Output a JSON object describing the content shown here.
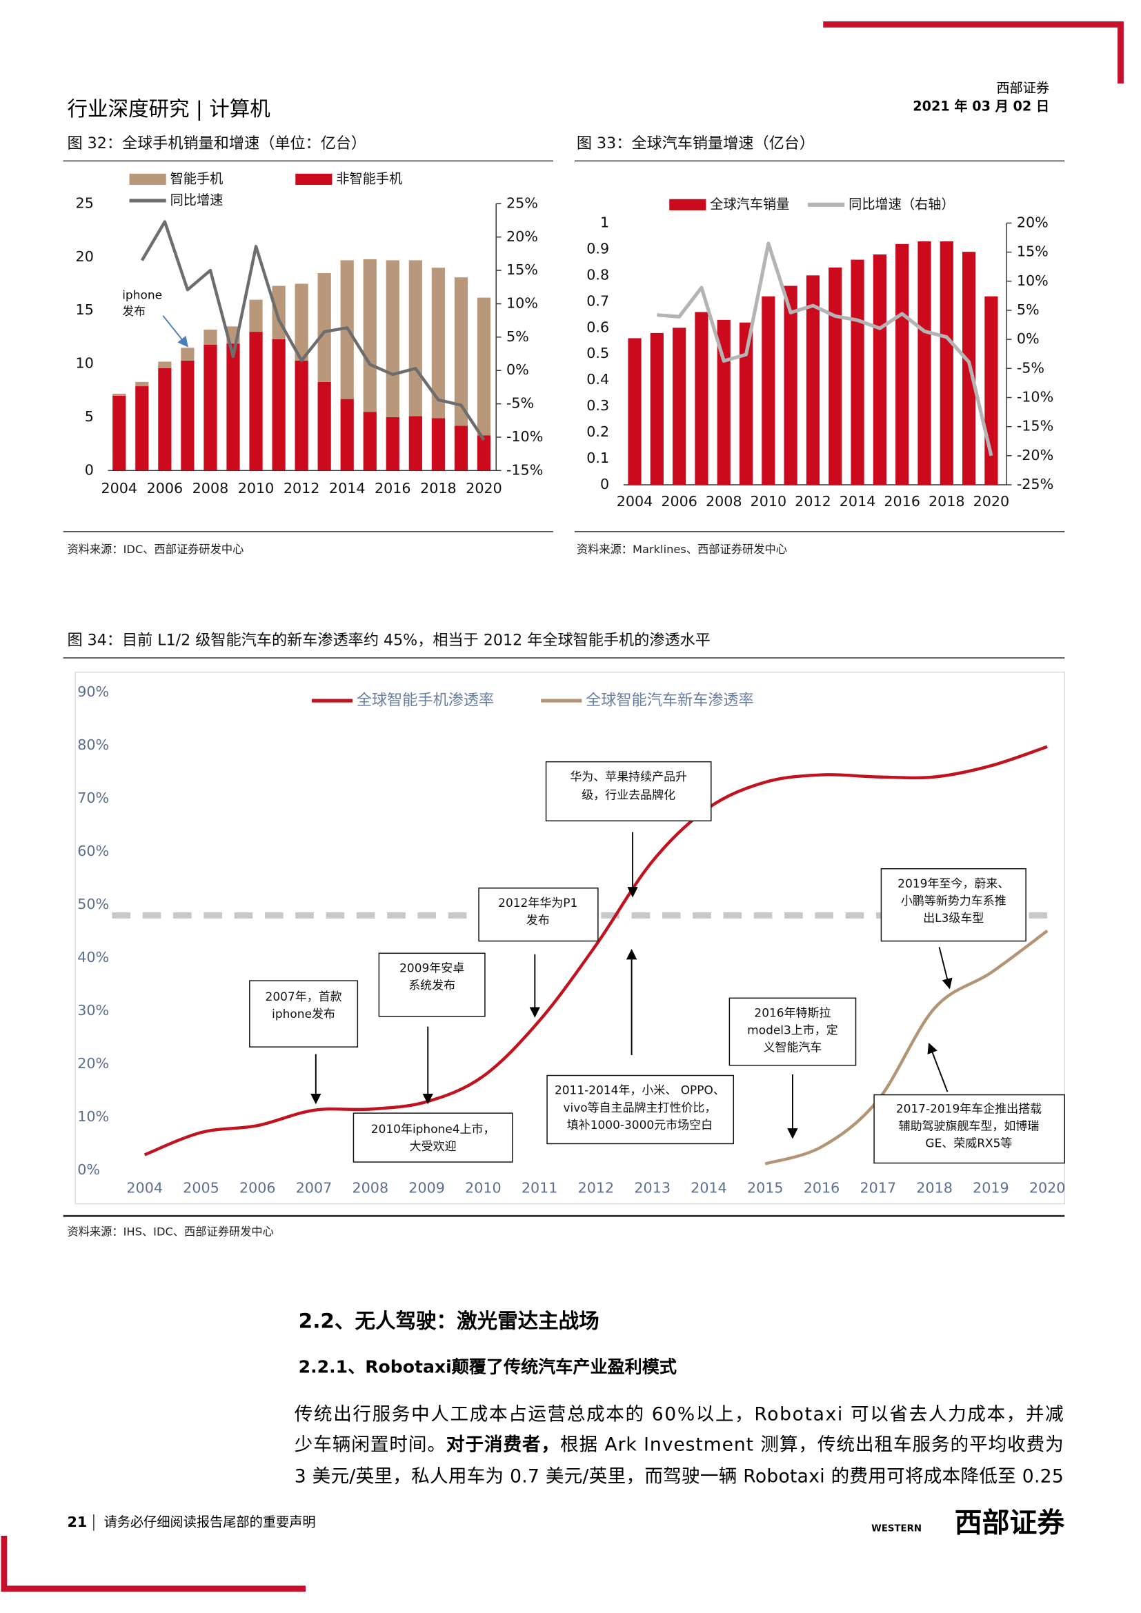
{
  "header": {
    "company": "西部证券",
    "date": "2021 年 03 月 02 日",
    "category": "行业深度研究 | 计算机"
  },
  "chart_data": [
    {
      "type": "bar",
      "stacked": true,
      "figure": "图 32：全球手机销量和增速（单位：亿台）",
      "source": "资料来源：IDC、西部证券研发中心",
      "categories": [
        "2004",
        null,
        "2006",
        null,
        "2008",
        null,
        "2010",
        null,
        "2012",
        null,
        "2014",
        null,
        "2016",
        null,
        "2018",
        null,
        "2020"
      ],
      "series": [
        {
          "name": "智能手机",
          "color": "#b8977a",
          "values": [
            0.2,
            0.4,
            0.6,
            1.2,
            1.4,
            1.6,
            3.0,
            5.0,
            7.2,
            10.2,
            13.0,
            14.3,
            14.7,
            14.6,
            14.1,
            13.9,
            12.9
          ]
        },
        {
          "name": "非智能手机",
          "color": "#cc0a1e",
          "values": [
            7.0,
            7.9,
            9.6,
            10.3,
            11.8,
            11.9,
            13.0,
            12.3,
            10.3,
            8.3,
            6.7,
            5.5,
            5.0,
            5.1,
            4.9,
            4.2,
            3.3
          ]
        },
        {
          "name": "同比增速",
          "type": "line",
          "axis": "y2",
          "color": "#6d6d6d",
          "values": [
            null,
            16.5,
            22.3,
            12.1,
            15.0,
            2.1,
            18.6,
            7.6,
            1.5,
            5.8,
            6.4,
            0.9,
            -0.6,
            0.3,
            -4.4,
            -5.2,
            -10.4
          ]
        }
      ],
      "ylim": [
        0,
        25
      ],
      "yticks": [
        0,
        5,
        10,
        15,
        20,
        25
      ],
      "y2lim": [
        -15,
        25
      ],
      "y2ticks": [
        {
          "value": -15,
          "label": "-15%"
        },
        {
          "value": -10,
          "label": "-10%"
        },
        {
          "value": -5,
          "label": "-5%"
        },
        {
          "value": 0,
          "label": "0%"
        },
        {
          "value": 5,
          "label": "5%"
        },
        {
          "value": 10,
          "label": "10%"
        },
        {
          "value": 15,
          "label": "15%"
        },
        {
          "value": 20,
          "label": "20%"
        },
        {
          "value": 25,
          "label": "25%"
        }
      ],
      "annotations": [
        {
          "text": [
            "iphone",
            "发布"
          ]
        }
      ]
    },
    {
      "type": "bar",
      "figure": "图 33：全球汽车销量增速（亿台）",
      "source": "资料来源：Marklines、西部证券研发中心",
      "categories": [
        "2004",
        null,
        "2006",
        null,
        "2008",
        null,
        "2010",
        null,
        "2012",
        null,
        "2014",
        null,
        "2016",
        null,
        "2018",
        null,
        "2020"
      ],
      "series": [
        {
          "name": "全球汽车销量",
          "color": "#cc0a1e",
          "values": [
            0.56,
            0.58,
            0.6,
            0.66,
            0.63,
            0.62,
            0.72,
            0.76,
            0.8,
            0.83,
            0.86,
            0.88,
            0.92,
            0.93,
            0.93,
            0.89,
            0.72
          ]
        },
        {
          "name": "同比增速（右轴）",
          "type": "line",
          "axis": "y2",
          "color": "#b4b4b4",
          "values": [
            null,
            4.2,
            3.9,
            8.9,
            -3.7,
            -2.6,
            16.5,
            4.6,
            5.8,
            4.0,
            3.3,
            1.9,
            4.4,
            1.4,
            0.4,
            -3.9,
            -20.0
          ]
        }
      ],
      "ylim": [
        0,
        1
      ],
      "yticks": [
        0,
        0.1,
        0.2,
        0.3,
        0.4,
        0.5,
        0.6,
        0.7,
        0.8,
        0.9,
        1
      ],
      "y2lim": [
        -25,
        20
      ],
      "y2ticks": [
        {
          "value": -25,
          "label": "-25%"
        },
        {
          "value": -20,
          "label": "-20%"
        },
        {
          "value": -15,
          "label": "-15%"
        },
        {
          "value": -10,
          "label": "-10%"
        },
        {
          "value": -5,
          "label": "-5%"
        },
        {
          "value": 0,
          "label": "0%"
        },
        {
          "value": 5,
          "label": "5%"
        },
        {
          "value": 10,
          "label": "10%"
        },
        {
          "value": 15,
          "label": "15%"
        },
        {
          "value": 20,
          "label": "20%"
        }
      ]
    },
    {
      "type": "line",
      "figure": "图 34：目前 L1/2 级智能汽车的新车渗透率约 45%，相当于 2012 年全球智能手机的渗透水平",
      "source": "资料来源：IHS、IDC、西部证券研发中心",
      "categories": [
        "2004",
        "2005",
        "2006",
        "2007",
        "2008",
        "2009",
        "2010",
        "2011",
        "2012",
        "2013",
        "2014",
        "2015",
        "2016",
        "2017",
        "2018",
        "2019",
        "2020"
      ],
      "series": [
        {
          "name": "全球智能手机渗透率",
          "color": "#c1121f",
          "values": [
            2.9,
            7.1,
            8.4,
            11.3,
            11.5,
            12.9,
            17.7,
            28.2,
            42.4,
            58.2,
            68.3,
            73.1,
            74.5,
            74.1,
            74.1,
            76.2,
            79.8
          ]
        },
        {
          "name": "全球智能汽车新车渗透率",
          "color": "#b39474",
          "values": [
            null,
            null,
            null,
            null,
            null,
            null,
            null,
            null,
            null,
            null,
            null,
            1.2,
            4.4,
            13.2,
            30.5,
            37.2,
            45.1
          ]
        }
      ],
      "ylim": [
        0,
        90
      ],
      "yticks": [
        {
          "value": 0,
          "label": "0%"
        },
        {
          "value": 10,
          "label": "10%"
        },
        {
          "value": 20,
          "label": "20%"
        },
        {
          "value": 30,
          "label": "30%"
        },
        {
          "value": 40,
          "label": "40%"
        },
        {
          "value": 50,
          "label": "50%"
        },
        {
          "value": 60,
          "label": "60%"
        },
        {
          "value": 70,
          "label": "70%"
        },
        {
          "value": 80,
          "label": "80%"
        },
        {
          "value": 90,
          "label": "90%"
        }
      ],
      "reference_line": 48,
      "annotations": [
        {
          "text": [
            "华为、苹果持续产品升",
            "级，行业去品牌化"
          ]
        },
        {
          "text": [
            "2012年华为P1",
            "发布"
          ]
        },
        {
          "text": [
            "2009年安卓",
            "系统发布"
          ]
        },
        {
          "text": [
            "2007年，首款",
            "iphone发布"
          ]
        },
        {
          "text": [
            "2010年iphone4上市，",
            "大受欢迎"
          ]
        },
        {
          "text": [
            "2011-2014年，小米、 OPPO、",
            "vivo等自主品牌主打性价比，",
            "填补1000-3000元市场空白"
          ]
        },
        {
          "text": [
            "2016年特斯拉",
            "model3上市，定",
            "义智能汽车"
          ]
        },
        {
          "text": [
            "2019年至今，蔚来、",
            "小鹏等新势力车系推",
            "出L3级车型"
          ]
        },
        {
          "text": [
            "2017-2019年车企推出搭载",
            "辅助驾驶旗舰车型，如博瑞",
            "GE、荣威RX5等"
          ]
        }
      ]
    }
  ],
  "section": {
    "heading": "2.2、无人驾驶：激光雷达主战场",
    "subheading": "2.2.1、Robotaxi颠覆了传统汽车产业盈利模式",
    "paragraph": [
      [
        "传统出行服务中人工成本占运营总成本的 60%以上，Robotaxi 可以省去人力成本，并减"
      ],
      [
        "少车辆闲置时间。",
        "对于消费者，",
        "根据 Ark Investment 测算，传统出租车服务的平均收费为"
      ],
      [
        "3 美元/英里，私人用车为 0.7 美元/英里，而驾驶一辆 Robotaxi 的费用可将成本降低至 0.25"
      ]
    ]
  },
  "footer": {
    "page": "21",
    "notice": "请务必仔细阅读报告尾部的重要声明",
    "logo_en": "WESTERN",
    "logo_cn": "西部证券"
  }
}
